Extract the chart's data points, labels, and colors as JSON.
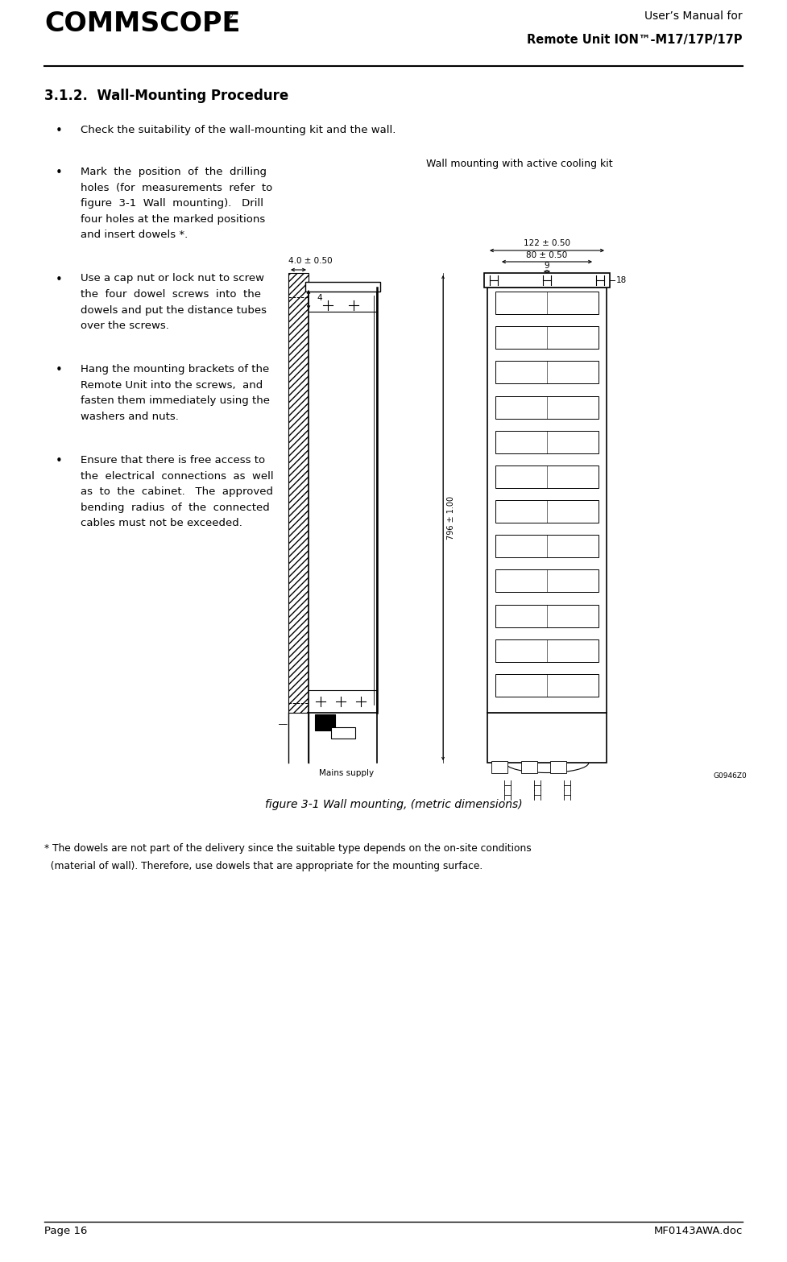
{
  "page_width": 9.77,
  "page_height": 15.67,
  "dpi": 100,
  "header_title_line1": "User’s Manual for",
  "header_title_line2": "Remote Unit ION™-M17/17P/17P",
  "footer_left": "Page 16",
  "footer_right": "MF0143AWA.doc",
  "section_title": "3.1.2.  Wall-Mounting Procedure",
  "bullet1": "Check the suitability of the wall-mounting kit and the wall.",
  "bullet2_line1": "Mark  the  position  of  the  drilling",
  "bullet2_line2": "holes  (for  measurements  refer  to",
  "bullet2_line3": "figure  3-1  Wall  mounting).   Drill",
  "bullet2_line4": "four holes at the marked positions",
  "bullet2_line5": "and insert dowels *.",
  "bullet3_line1": "Use a cap nut or lock nut to screw",
  "bullet3_line2": "the  four  dowel  screws  into  the",
  "bullet3_line3": "dowels and put the distance tubes",
  "bullet3_line4": "over the screws.",
  "bullet4_line1": "Hang the mounting brackets of the",
  "bullet4_line2": "Remote Unit into the screws,  and",
  "bullet4_line3": "fasten them immediately using the",
  "bullet4_line4": "washers and nuts.",
  "bullet5_line1": "Ensure that there is free access to",
  "bullet5_line2": "the  electrical  connections  as  well",
  "bullet5_line3": "as  to  the  cabinet.   The  approved",
  "bullet5_line4": "bending  radius  of  the  connected",
  "bullet5_line5": "cables must not be exceeded.",
  "diagram_title": "Wall mounting with active cooling kit",
  "dim_top_left": "4.0 ± 0.50",
  "dim_top_right": "122 ± 0.50",
  "dim_80": "80 ± 0.50",
  "dim_9": "9",
  "dim_18": "18",
  "dim_796": "796 ± 1.00",
  "dim_4": "4",
  "mains_label": "Mains supply",
  "g0946z0": "G0946Z0",
  "figure_caption": "figure 3-1 Wall mounting, (metric dimensions)",
  "footnote_line1": "* The dowels are not part of the delivery since the suitable type depends on the on-site conditions",
  "footnote_line2": "  (material of wall). Therefore, use dowels that are appropriate for the mounting surface.",
  "bg_color": "#ffffff",
  "text_color": "#000000"
}
